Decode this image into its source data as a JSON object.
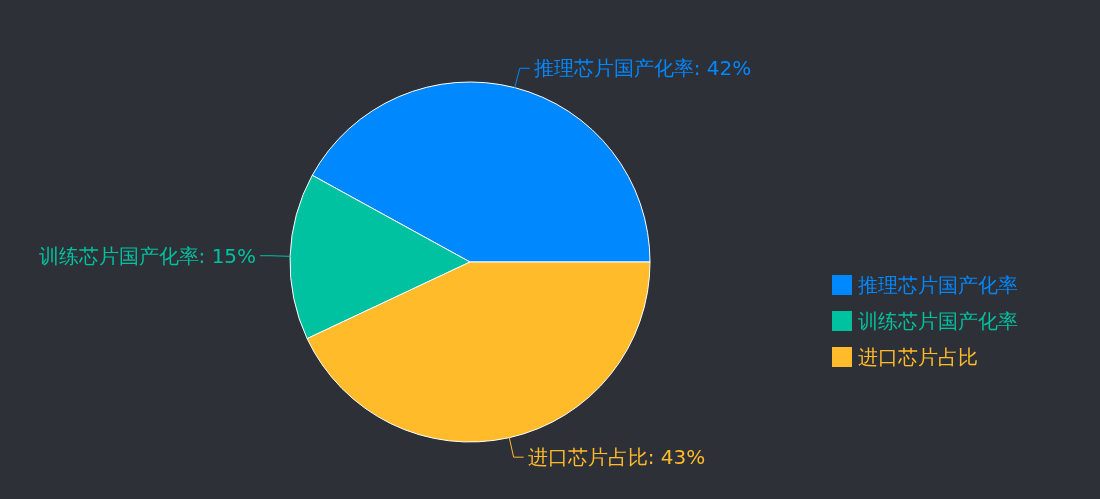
{
  "chart_data": {
    "type": "pie",
    "categories": [
      "推理芯片国产化率",
      "训练芯片国产化率",
      "进口芯片占比"
    ],
    "values": [
      42,
      15,
      43
    ],
    "colors": [
      "#0088ff",
      "#00c2a0",
      "#ffbb29"
    ],
    "value_labels": [
      "推理芯片国产化率: 42%",
      "训练芯片国产化率: 15%",
      "进口芯片占比: 43%"
    ],
    "legend": "right"
  }
}
